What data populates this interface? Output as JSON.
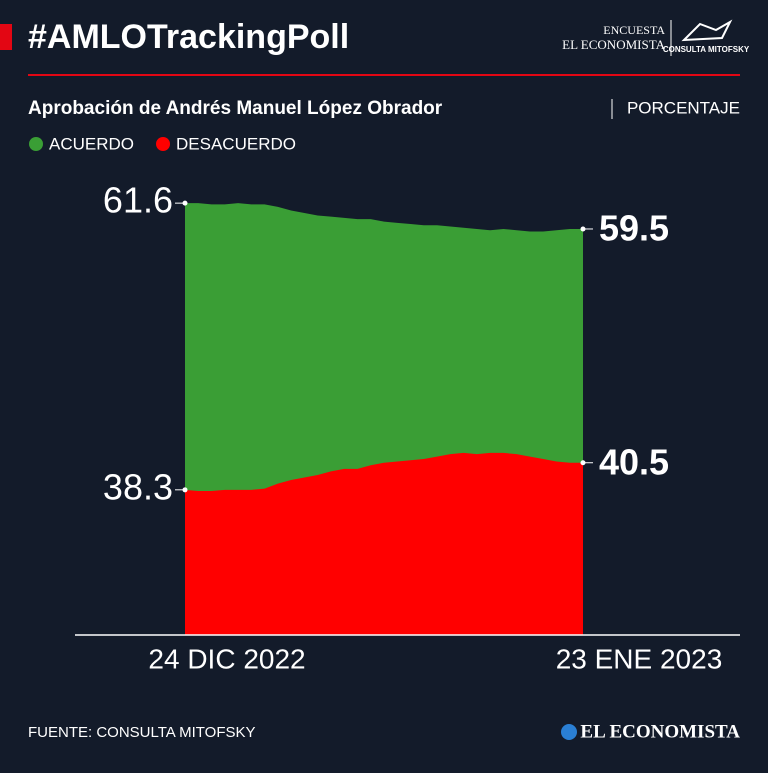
{
  "branding": {
    "logo_top": "ENCUESTA",
    "logo_main": "EL ECONOMISTA",
    "logo_partner": "CONSULTA MITOFSKY",
    "footer_logo": "EL ECONOMISTA"
  },
  "chart_data": {
    "type": "area",
    "title": "#AMLOTrackingPoll",
    "subtitle": "Aprobación de Andrés Manuel López Obrador",
    "unit": "PORCENTAJE",
    "source": "FUENTE: CONSULTA MITOFSKY",
    "categories": [
      "24 DIC 2022",
      null,
      null,
      null,
      null,
      null,
      null,
      null,
      null,
      null,
      null,
      null,
      null,
      null,
      null,
      null,
      null,
      null,
      null,
      null,
      null,
      null,
      null,
      null,
      null,
      null,
      null,
      null,
      null,
      null,
      "23 ENE 2023"
    ],
    "series": [
      {
        "name": "ACUERDO",
        "color": "#3a9e35",
        "values": [
          61.6,
          61.6,
          61.5,
          61.5,
          61.6,
          61.5,
          61.5,
          61.3,
          61.0,
          60.8,
          60.6,
          60.5,
          60.4,
          60.3,
          60.3,
          60.1,
          60.0,
          59.9,
          59.8,
          59.8,
          59.7,
          59.6,
          59.5,
          59.4,
          59.5,
          59.4,
          59.3,
          59.3,
          59.4,
          59.5,
          59.5
        ]
      },
      {
        "name": "DESACUERDO",
        "color": "#ff0000",
        "values": [
          38.3,
          38.2,
          38.2,
          38.3,
          38.3,
          38.3,
          38.4,
          38.8,
          39.1,
          39.3,
          39.5,
          39.8,
          40.0,
          40.0,
          40.3,
          40.5,
          40.6,
          40.7,
          40.8,
          41.0,
          41.2,
          41.3,
          41.2,
          41.3,
          41.3,
          41.2,
          41.0,
          40.8,
          40.6,
          40.5,
          40.5
        ]
      }
    ],
    "ylim": [
      26.5,
      66
    ]
  }
}
